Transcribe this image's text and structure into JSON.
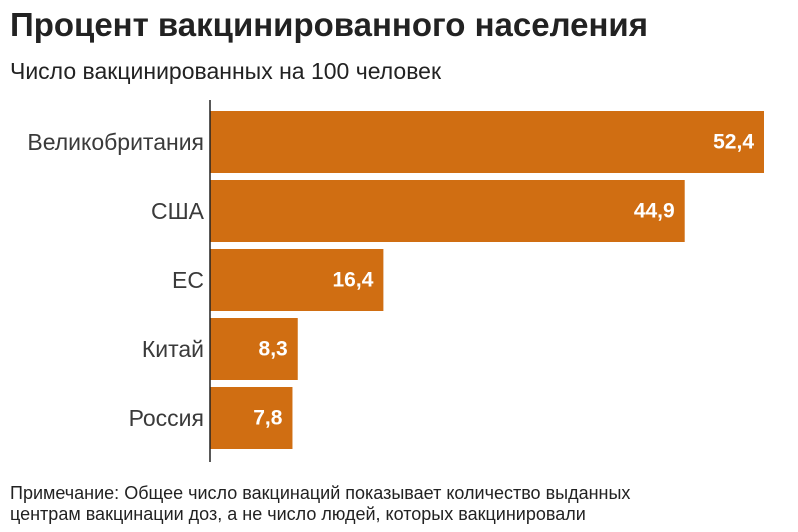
{
  "header": {
    "title": "Процент вакцинированного населения",
    "subtitle": "Число вакцинированных на 100 человек"
  },
  "chart_data": {
    "type": "bar",
    "orientation": "horizontal",
    "categories": [
      "Великобритания",
      "США",
      "ЕС",
      "Китай",
      "Россия"
    ],
    "values": [
      52.4,
      44.9,
      16.4,
      8.3,
      7.8
    ],
    "value_labels": [
      "52,4",
      "44,9",
      "16,4",
      "8,3",
      "7,8"
    ],
    "title": "Процент вакцинированного населения",
    "subtitle": "Число вакцинированных на 100 человек",
    "xlim": [
      0,
      52.4
    ],
    "grid": false,
    "legend": "none",
    "bar_color": "#d06e12",
    "label_color": "#ffffff"
  },
  "footer": {
    "note_line1": "Примечание: Общее число вакцинаций показывает количество выданных",
    "note_line2": "центрам вакцинации доз, а не число людей, которых вакцинировали"
  }
}
